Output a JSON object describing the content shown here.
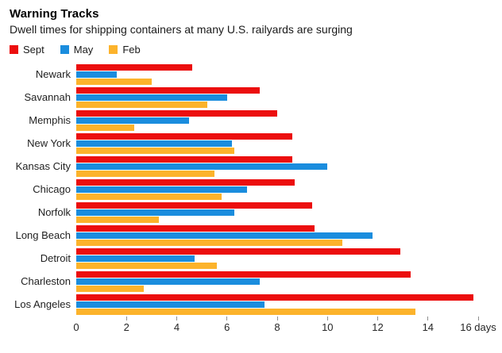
{
  "header": {
    "title": "Warning Tracks",
    "subtitle": "Dwell times for shipping containers at many U.S. railyards are surging"
  },
  "colors": {
    "sept": "#ec0e0e",
    "may": "#1a8dde",
    "feb": "#fcb32b"
  },
  "chart_data": {
    "type": "bar",
    "orientation": "horizontal",
    "title": "Warning Tracks",
    "subtitle": "Dwell times for shipping containers at many U.S. railyards are surging",
    "legend_position": "top-left",
    "grid": false,
    "categories": [
      "Newark",
      "Savannah",
      "Memphis",
      "New York",
      "Kansas City",
      "Chicago",
      "Norfolk",
      "Long Beach",
      "Detroit",
      "Charleston",
      "Los Angeles"
    ],
    "series": [
      {
        "name": "Sept",
        "color": "#ec0e0e",
        "values": [
          4.6,
          7.3,
          8.0,
          8.6,
          8.6,
          8.7,
          9.4,
          9.5,
          12.9,
          13.3,
          15.8
        ]
      },
      {
        "name": "May",
        "color": "#1a8dde",
        "values": [
          1.6,
          6.0,
          4.5,
          6.2,
          10.0,
          6.8,
          6.3,
          11.8,
          4.7,
          7.3,
          7.5
        ]
      },
      {
        "name": "Feb",
        "color": "#fcb32b",
        "values": [
          3.0,
          5.2,
          2.3,
          6.3,
          5.5,
          5.8,
          3.3,
          10.6,
          5.6,
          2.7,
          13.5
        ]
      }
    ],
    "xlim": [
      0,
      16
    ],
    "x_unit": "days",
    "ticks": [
      {
        "value": 0,
        "label": "0",
        "mark": false
      },
      {
        "value": 2,
        "label": "2",
        "mark": true
      },
      {
        "value": 4,
        "label": "4",
        "mark": true
      },
      {
        "value": 6,
        "label": "6",
        "mark": true
      },
      {
        "value": 8,
        "label": "8",
        "mark": true
      },
      {
        "value": 10,
        "label": "10",
        "mark": true
      },
      {
        "value": 12,
        "label": "12",
        "mark": true
      },
      {
        "value": 14,
        "label": "14",
        "mark": true
      },
      {
        "value": 16,
        "label": "16 days",
        "mark": true
      }
    ]
  }
}
